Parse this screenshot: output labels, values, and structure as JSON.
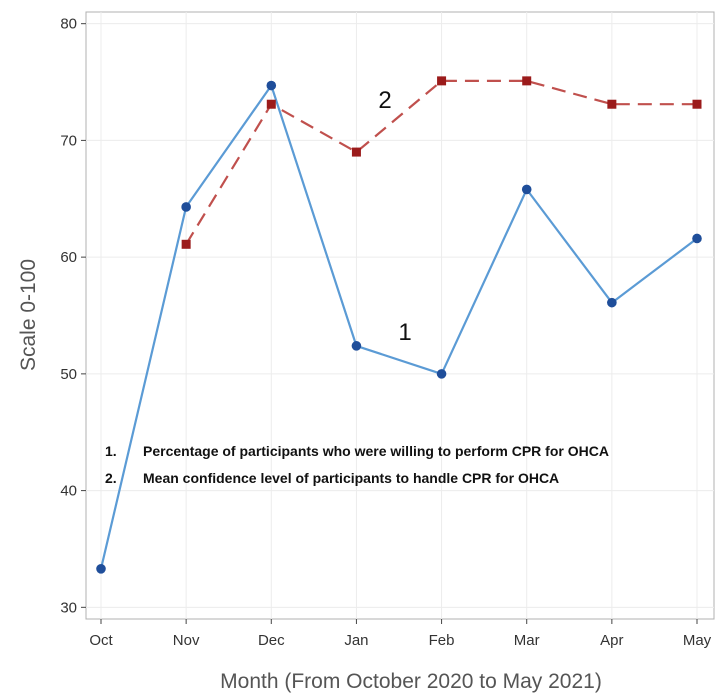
{
  "chart_data": {
    "type": "line",
    "title": "",
    "xlabel": "Month (From October 2020 to May 2021)",
    "ylabel": "Scale 0-100",
    "categories": [
      "Oct",
      "Nov",
      "Dec",
      "Jan",
      "Feb",
      "Mar",
      "Apr",
      "May"
    ],
    "ylim": [
      29,
      81
    ],
    "yticks": [
      30,
      40,
      50,
      60,
      70,
      80
    ],
    "grid": true,
    "series": [
      {
        "tag": "1",
        "values": [
          33.3,
          64.3,
          74.7,
          52.4,
          50.0,
          65.8,
          56.1,
          61.6
        ],
        "color": "#5b9bd5",
        "marker_color": "#1f4e9a",
        "marker": "circle",
        "line_style": "solid"
      },
      {
        "tag": "2",
        "values": [
          null,
          61.1,
          73.1,
          69.0,
          75.1,
          75.1,
          73.1,
          73.1
        ],
        "color": "#c0504d",
        "marker_color": "#9b1b1b",
        "marker": "square",
        "line_style": "dashed"
      }
    ],
    "legend": {
      "placement": "inside-left",
      "entries": [
        {
          "number": "1.",
          "text": "Percentage of participants who were willing to perform CPR for OHCA"
        },
        {
          "number": "2.",
          "text": "Mean confidence level of participants to handle CPR for OHCA"
        }
      ]
    }
  }
}
